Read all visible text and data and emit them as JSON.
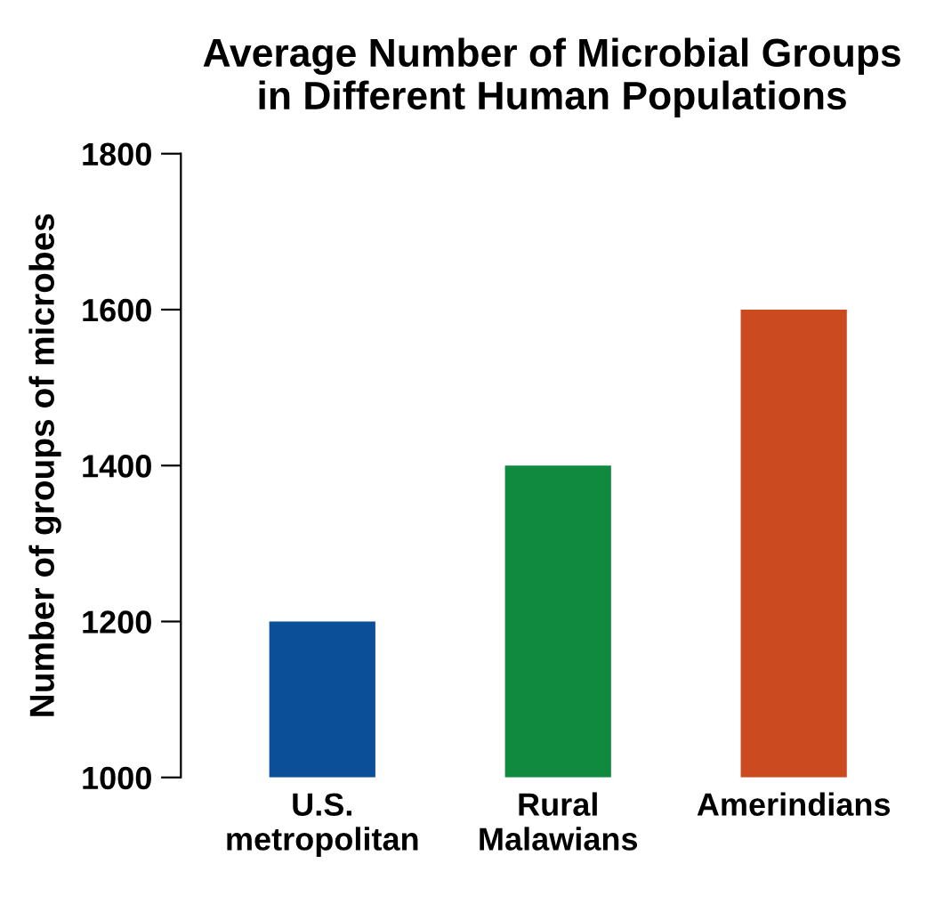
{
  "chart_data": {
    "type": "bar",
    "title": "Average Number of Microbial Groups\nin Different Human Populations",
    "ylabel": "Number of groups of microbes",
    "categories": [
      "U.S.\nmetropolitan",
      "Rural\nMalawians",
      "Amerindians"
    ],
    "values": [
      1200,
      1400,
      1600
    ],
    "colors": [
      "#0b4f98",
      "#0f8a3f",
      "#cc4a1f"
    ],
    "ylim": [
      1000,
      1800
    ],
    "yticks": [
      1000,
      1200,
      1400,
      1600,
      1800
    ],
    "grid": false,
    "legend": false
  }
}
